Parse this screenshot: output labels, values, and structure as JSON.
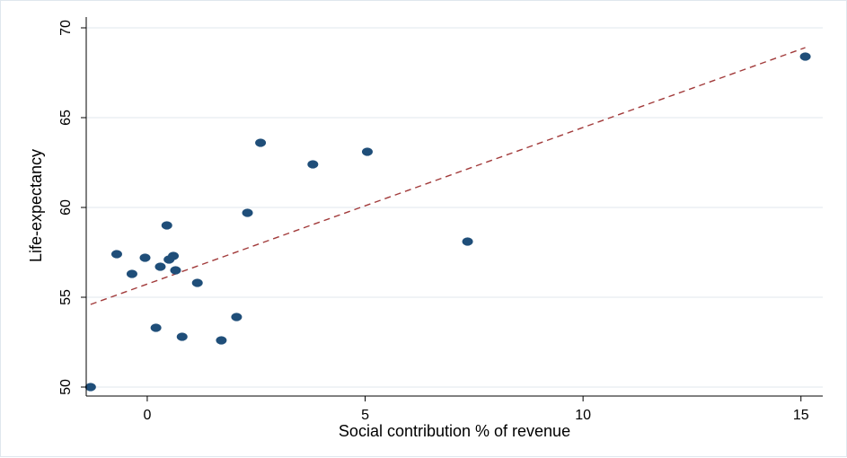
{
  "chart_data": {
    "type": "scatter",
    "xlabel": "Social contribution % of revenue",
    "ylabel": "Life-expectancy",
    "xlim": [
      -1.4,
      15.5
    ],
    "ylim": [
      49.5,
      70.6
    ],
    "x_ticks": [
      0,
      5,
      10,
      15
    ],
    "y_ticks": [
      50,
      55,
      60,
      65,
      70
    ],
    "grid": "horizontal",
    "legend": "none",
    "colors": {
      "points": "#1f4e79",
      "fit_line": "#a23b3b",
      "grid": "#e6ecf1",
      "axis": "#000000"
    },
    "points": [
      {
        "x": -1.3,
        "y": 50.0
      },
      {
        "x": -0.7,
        "y": 57.4
      },
      {
        "x": -0.35,
        "y": 56.3
      },
      {
        "x": -0.05,
        "y": 57.2
      },
      {
        "x": 0.2,
        "y": 53.3
      },
      {
        "x": 0.3,
        "y": 56.7
      },
      {
        "x": 0.45,
        "y": 59.0
      },
      {
        "x": 0.5,
        "y": 57.1
      },
      {
        "x": 0.6,
        "y": 57.3
      },
      {
        "x": 0.65,
        "y": 56.5
      },
      {
        "x": 0.8,
        "y": 52.8
      },
      {
        "x": 1.15,
        "y": 55.8
      },
      {
        "x": 1.7,
        "y": 52.6
      },
      {
        "x": 2.05,
        "y": 53.9
      },
      {
        "x": 2.3,
        "y": 59.7
      },
      {
        "x": 2.6,
        "y": 63.6
      },
      {
        "x": 3.8,
        "y": 62.4
      },
      {
        "x": 5.05,
        "y": 63.1
      },
      {
        "x": 7.35,
        "y": 58.1
      },
      {
        "x": 15.1,
        "y": 68.4
      }
    ],
    "fit_line": {
      "style": "dashed",
      "x": [
        -1.3,
        15.1
      ],
      "y": [
        54.6,
        68.9
      ]
    }
  }
}
